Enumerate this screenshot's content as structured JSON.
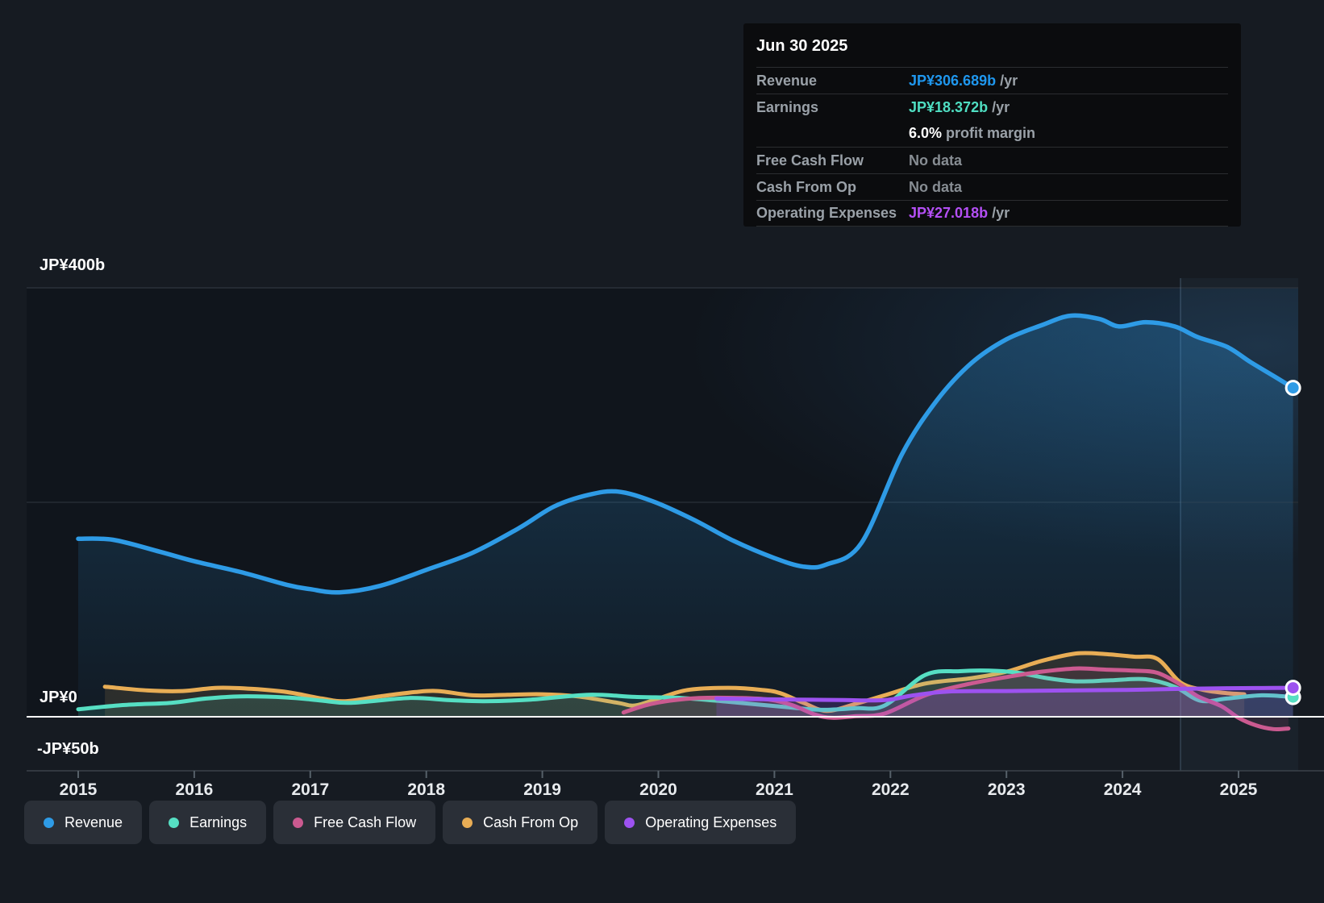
{
  "tooltip": {
    "date": "Jun 30 2025",
    "rows": [
      {
        "id": "revenue",
        "label": "Revenue",
        "value": "JP¥306.689b",
        "suffix": " /yr",
        "color": "#1f97ee"
      },
      {
        "id": "earnings",
        "label": "Earnings",
        "value": "JP¥18.372b",
        "suffix": " /yr",
        "color": "#4fdec2"
      },
      {
        "id": "profit-margin",
        "label": "",
        "value": "6.0%",
        "suffix": " profit margin",
        "color": "#ffffff"
      },
      {
        "id": "free-cash-flow",
        "label": "Free Cash Flow",
        "value": "No data",
        "suffix": "",
        "color": "#878d93"
      },
      {
        "id": "cash-from-op",
        "label": "Cash From Op",
        "value": "No data",
        "suffix": "",
        "color": "#878d93"
      },
      {
        "id": "operating-expenses",
        "label": "Operating Expenses",
        "value": "JP¥27.018b",
        "suffix": " /yr",
        "color": "#b44ff5"
      }
    ]
  },
  "legend": [
    {
      "label": "Revenue",
      "color": "#2e9be6"
    },
    {
      "label": "Earnings",
      "color": "#56dfc3"
    },
    {
      "label": "Free Cash Flow",
      "color": "#cb5a90"
    },
    {
      "label": "Cash From Op",
      "color": "#e8ad55"
    },
    {
      "label": "Operating Expenses",
      "color": "#9d52f0"
    }
  ],
  "chart_data": {
    "type": "line",
    "unit": "JP¥ billions per year",
    "x_axis": {
      "years": [
        2015,
        2016,
        2017,
        2018,
        2019,
        2020,
        2021,
        2022,
        2023,
        2024,
        2025
      ],
      "range": [
        2014.55,
        2025.55
      ]
    },
    "y_axis": {
      "range": [
        -50,
        400
      ],
      "gridline_values": [
        400,
        200,
        0,
        -50
      ],
      "labels": [
        {
          "text": "JP¥400b",
          "value": 400
        },
        {
          "text": "JP¥0",
          "value": 0
        },
        {
          "text": "-JP¥50b",
          "value": -50
        }
      ]
    },
    "divider_year": 2024.5,
    "series": [
      {
        "name": "Revenue",
        "color": "#2e9be6",
        "end_marker": true,
        "width": 5.5,
        "fill_opacity": 0.28,
        "points": [
          [
            2015.0,
            166
          ],
          [
            2015.3,
            165
          ],
          [
            2015.7,
            154
          ],
          [
            2016.0,
            145
          ],
          [
            2016.4,
            135
          ],
          [
            2016.8,
            123
          ],
          [
            2017.0,
            119
          ],
          [
            2017.25,
            116
          ],
          [
            2017.6,
            122
          ],
          [
            2018.0,
            137
          ],
          [
            2018.4,
            153
          ],
          [
            2018.8,
            176
          ],
          [
            2019.1,
            196
          ],
          [
            2019.4,
            207
          ],
          [
            2019.65,
            210
          ],
          [
            2019.95,
            201
          ],
          [
            2020.3,
            184
          ],
          [
            2020.65,
            164
          ],
          [
            2021.0,
            148
          ],
          [
            2021.25,
            140
          ],
          [
            2021.45,
            142
          ],
          [
            2021.75,
            162
          ],
          [
            2022.1,
            245
          ],
          [
            2022.4,
            295
          ],
          [
            2022.7,
            330
          ],
          [
            2023.0,
            352
          ],
          [
            2023.3,
            365
          ],
          [
            2023.55,
            374
          ],
          [
            2023.8,
            371
          ],
          [
            2023.97,
            364
          ],
          [
            2024.2,
            368
          ],
          [
            2024.45,
            364
          ],
          [
            2024.65,
            354
          ],
          [
            2024.9,
            345
          ],
          [
            2025.1,
            331
          ],
          [
            2025.3,
            318
          ],
          [
            2025.47,
            306.689
          ]
        ]
      },
      {
        "name": "Cash From Op",
        "color": "#e8ad55",
        "end_marker": false,
        "width": 5,
        "fill_opacity": 0.13,
        "points": [
          [
            2015.23,
            28
          ],
          [
            2015.6,
            24.5
          ],
          [
            2015.9,
            24
          ],
          [
            2016.2,
            27
          ],
          [
            2016.5,
            26
          ],
          [
            2016.8,
            23
          ],
          [
            2017.1,
            17
          ],
          [
            2017.3,
            14.5
          ],
          [
            2017.6,
            19
          ],
          [
            2017.9,
            23
          ],
          [
            2018.1,
            24
          ],
          [
            2018.4,
            20
          ],
          [
            2018.7,
            20.5
          ],
          [
            2019.0,
            21
          ],
          [
            2019.3,
            19
          ],
          [
            2019.65,
            13
          ],
          [
            2019.8,
            10.5
          ],
          [
            2020.0,
            17
          ],
          [
            2020.25,
            25
          ],
          [
            2020.6,
            27
          ],
          [
            2020.9,
            25
          ],
          [
            2021.05,
            22
          ],
          [
            2021.25,
            13
          ],
          [
            2021.45,
            5.5
          ],
          [
            2021.7,
            12
          ],
          [
            2021.95,
            20
          ],
          [
            2022.3,
            31
          ],
          [
            2022.7,
            36
          ],
          [
            2023.0,
            42
          ],
          [
            2023.3,
            52
          ],
          [
            2023.6,
            59
          ],
          [
            2023.85,
            58.5
          ],
          [
            2024.1,
            56
          ],
          [
            2024.3,
            54
          ],
          [
            2024.5,
            32
          ],
          [
            2024.7,
            25
          ],
          [
            2024.9,
            22
          ],
          [
            2025.05,
            21
          ]
        ]
      },
      {
        "name": "Earnings",
        "color": "#56dfc3",
        "end_marker": true,
        "width": 5,
        "fill_opacity": 0.14,
        "points": [
          [
            2015.0,
            7
          ],
          [
            2015.4,
            11
          ],
          [
            2015.8,
            13
          ],
          [
            2016.1,
            17
          ],
          [
            2016.4,
            19
          ],
          [
            2016.8,
            18
          ],
          [
            2017.1,
            15
          ],
          [
            2017.35,
            13
          ],
          [
            2017.85,
            17.5
          ],
          [
            2018.2,
            15.5
          ],
          [
            2018.5,
            14.5
          ],
          [
            2018.9,
            16
          ],
          [
            2019.4,
            20.5
          ],
          [
            2019.8,
            18.5
          ],
          [
            2020.2,
            17.5
          ],
          [
            2020.6,
            14
          ],
          [
            2021.1,
            9
          ],
          [
            2021.4,
            6.5
          ],
          [
            2021.7,
            8
          ],
          [
            2021.95,
            10.5
          ],
          [
            2022.3,
            39
          ],
          [
            2022.6,
            42.5
          ],
          [
            2022.85,
            43
          ],
          [
            2023.1,
            41
          ],
          [
            2023.35,
            36
          ],
          [
            2023.6,
            33
          ],
          [
            2023.9,
            34
          ],
          [
            2024.2,
            35
          ],
          [
            2024.45,
            28
          ],
          [
            2024.67,
            15
          ],
          [
            2024.9,
            17
          ],
          [
            2025.2,
            20
          ],
          [
            2025.47,
            18.372
          ]
        ]
      },
      {
        "name": "Free Cash Flow",
        "color": "#cb5a90",
        "end_marker": false,
        "width": 5,
        "fill_opacity": 0.12,
        "points": [
          [
            2019.7,
            4
          ],
          [
            2019.9,
            11
          ],
          [
            2020.1,
            15
          ],
          [
            2020.35,
            17.5
          ],
          [
            2020.7,
            17.5
          ],
          [
            2020.95,
            16
          ],
          [
            2021.15,
            11
          ],
          [
            2021.35,
            2
          ],
          [
            2021.5,
            -1
          ],
          [
            2021.7,
            0.5
          ],
          [
            2021.95,
            3
          ],
          [
            2022.3,
            20
          ],
          [
            2022.65,
            30
          ],
          [
            2023.0,
            37
          ],
          [
            2023.3,
            42
          ],
          [
            2023.6,
            45
          ],
          [
            2023.85,
            44
          ],
          [
            2024.1,
            43
          ],
          [
            2024.3,
            41
          ],
          [
            2024.5,
            30
          ],
          [
            2024.65,
            19
          ],
          [
            2024.85,
            10
          ],
          [
            2025.0,
            -1
          ],
          [
            2025.15,
            -8
          ],
          [
            2025.3,
            -11.5
          ],
          [
            2025.43,
            -11
          ]
        ]
      },
      {
        "name": "Operating Expenses",
        "color": "#9d52f0",
        "end_marker": true,
        "width": 5,
        "fill_opacity": 0.2,
        "points": [
          [
            2020.5,
            17
          ],
          [
            2020.8,
            16.5
          ],
          [
            2021.2,
            16
          ],
          [
            2021.6,
            15.6
          ],
          [
            2021.95,
            15.5
          ],
          [
            2022.2,
            20
          ],
          [
            2022.5,
            23.5
          ],
          [
            2023.0,
            24
          ],
          [
            2023.5,
            24.5
          ],
          [
            2024.0,
            25
          ],
          [
            2024.5,
            26
          ],
          [
            2024.9,
            26.6
          ],
          [
            2025.2,
            26.8
          ],
          [
            2025.47,
            27.018
          ]
        ]
      }
    ],
    "colors": {
      "grid_top": "#2a313a",
      "grid_mid": "#252c34",
      "zero_line": "#ffffff",
      "axis_line": "#3b424b",
      "tick": "#566069",
      "x_label": "#e8ebee",
      "divider": "rgba(130,165,200,0.28)",
      "forecast_band": "rgba(110,155,205,0.055)",
      "plot_bg": "#10151c"
    }
  }
}
